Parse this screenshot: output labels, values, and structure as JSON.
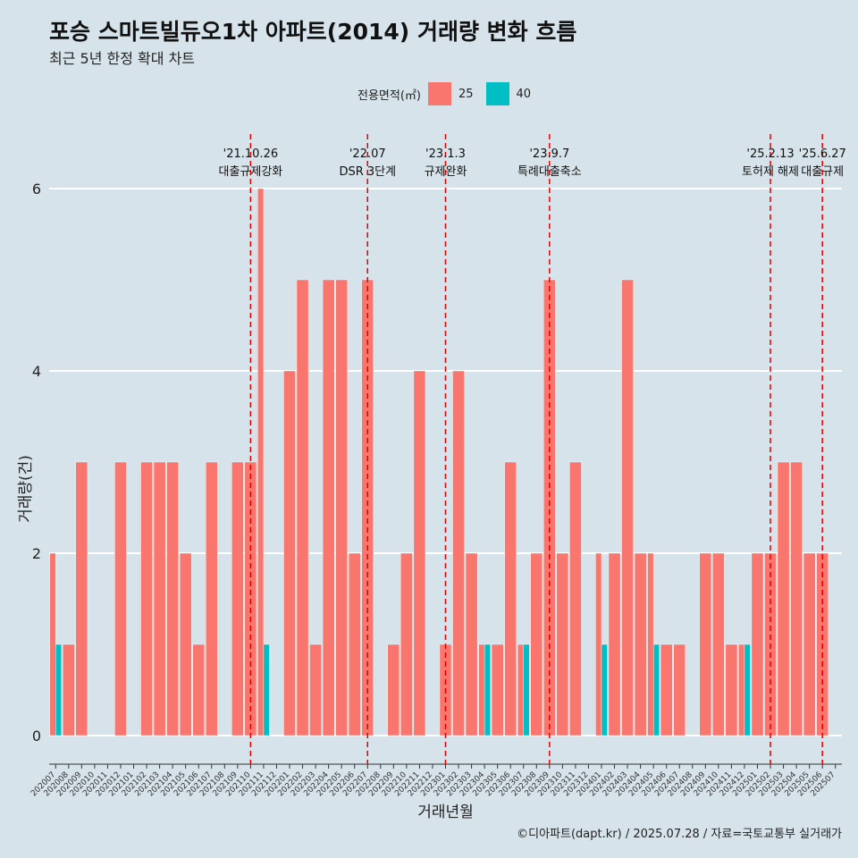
{
  "header": {
    "title": "포승 스마트빌듀오1차 아파트(2014) 거래량 변화 흐름",
    "subtitle": "최근 5년 한정 확대 차트"
  },
  "legend": {
    "title": "전용면적(㎡)",
    "items": [
      {
        "label": "25",
        "color": "#f8766d"
      },
      {
        "label": "40",
        "color": "#00bfc4"
      }
    ]
  },
  "caption": "©디아파트(dapt.kr) / 2025.07.28 / 자료=국토교통부 실거래가",
  "chart_data": {
    "type": "bar",
    "xlabel": "거래년월",
    "ylabel": "거래량(건)",
    "ylim": [
      0,
      6
    ],
    "yticks": [
      0,
      2,
      4,
      6
    ],
    "grid": true,
    "legend_position": "top",
    "categories": [
      "202007",
      "202008",
      "202009",
      "202010",
      "202011",
      "202012",
      "202101",
      "202102",
      "202103",
      "202104",
      "202105",
      "202106",
      "202107",
      "202108",
      "202109",
      "202110",
      "202111",
      "202112",
      "202201",
      "202202",
      "202203",
      "202204",
      "202205",
      "202206",
      "202207",
      "202208",
      "202209",
      "202210",
      "202211",
      "202212",
      "202301",
      "202302",
      "202303",
      "202304",
      "202305",
      "202306",
      "202307",
      "202308",
      "202309",
      "202310",
      "202311",
      "202312",
      "202401",
      "202402",
      "202403",
      "202404",
      "202405",
      "202406",
      "202407",
      "202408",
      "202409",
      "202410",
      "202411",
      "202412",
      "202501",
      "202502",
      "202503",
      "202504",
      "202505",
      "202506",
      "202507"
    ],
    "series": [
      {
        "name": "25",
        "color": "#f8766d",
        "values": [
          2,
          1,
          3,
          0,
          0,
          3,
          0,
          3,
          3,
          3,
          2,
          1,
          3,
          0,
          3,
          3,
          6,
          0,
          4,
          5,
          1,
          5,
          5,
          2,
          5,
          0,
          1,
          2,
          4,
          0,
          1,
          4,
          2,
          1,
          1,
          3,
          1,
          2,
          5,
          2,
          3,
          0,
          2,
          2,
          5,
          2,
          2,
          1,
          1,
          0,
          2,
          2,
          1,
          1,
          2,
          2,
          3,
          3,
          2,
          2,
          0
        ]
      },
      {
        "name": "40",
        "color": "#00bfc4",
        "values": [
          1,
          0,
          0,
          0,
          0,
          0,
          0,
          0,
          0,
          0,
          0,
          0,
          0,
          0,
          0,
          0,
          1,
          0,
          0,
          0,
          0,
          0,
          0,
          0,
          0,
          0,
          0,
          0,
          0,
          0,
          0,
          0,
          0,
          1,
          0,
          0,
          1,
          0,
          0,
          0,
          0,
          0,
          1,
          0,
          0,
          0,
          1,
          0,
          0,
          0,
          0,
          0,
          0,
          1,
          0,
          0,
          0,
          0,
          0,
          0,
          0
        ]
      }
    ],
    "annotations": [
      {
        "date": "'21.10.26",
        "label": "대출규제강화",
        "x": "202110"
      },
      {
        "date": "'22.07",
        "label": "DSR 3단계",
        "x": "202207"
      },
      {
        "date": "'23.1.3",
        "label": "규제완화",
        "x": "202301"
      },
      {
        "date": "'23.9.7",
        "label": "특례대출축소",
        "x": "202309"
      },
      {
        "date": "'25.2.13",
        "label": "토허제 해제",
        "x": "202502"
      },
      {
        "date": "'25.6.27",
        "label": "대출규제",
        "x": "202506"
      }
    ]
  }
}
